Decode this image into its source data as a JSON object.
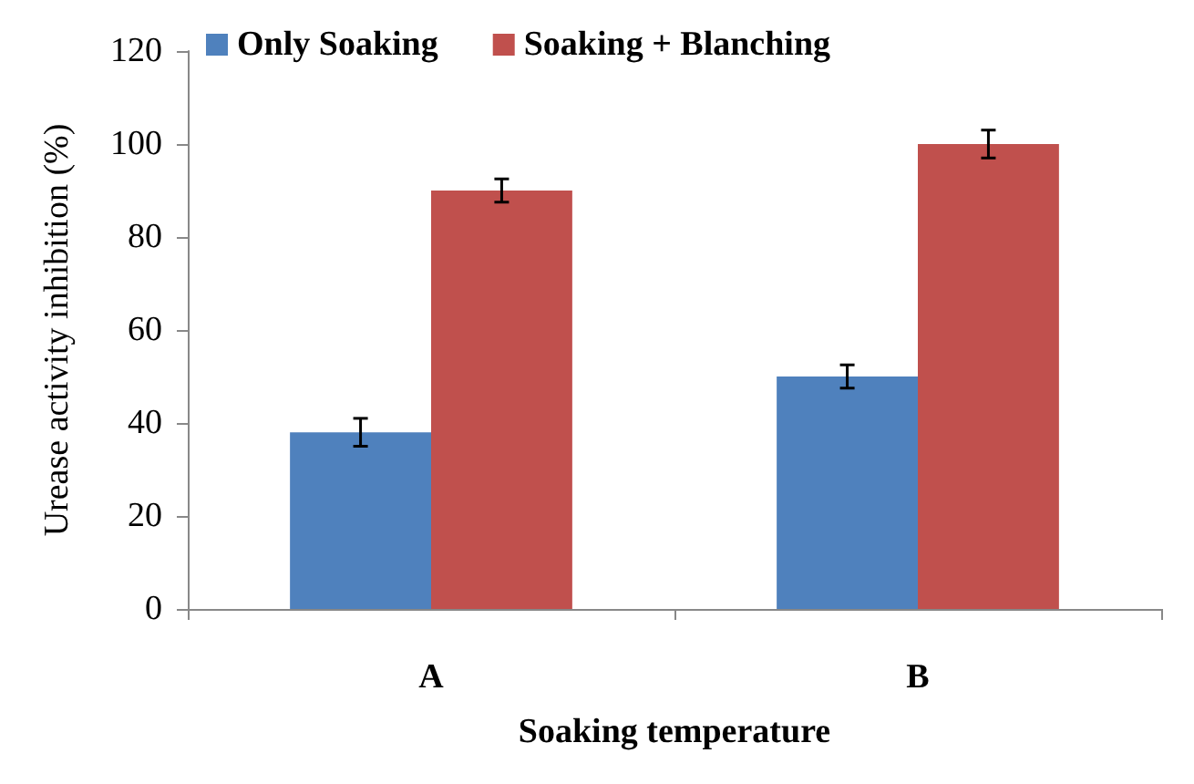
{
  "chart_data": {
    "type": "bar",
    "xlabel": "Soaking temperature",
    "ylabel": "Urease activity inhibition (%)",
    "categories": [
      "A",
      "B"
    ],
    "series": [
      {
        "name": "Only Soaking",
        "color": "#4f81bd",
        "values": [
          38,
          50
        ],
        "errors": [
          3,
          2.5
        ]
      },
      {
        "name": "Soaking + Blanching",
        "color": "#c0504d",
        "values": [
          90,
          100
        ],
        "errors": [
          2.5,
          3
        ]
      }
    ],
    "ylim": [
      0,
      120
    ],
    "yticks": [
      0,
      20,
      40,
      60,
      80,
      100,
      120
    ],
    "grid": false,
    "legend": "top"
  }
}
